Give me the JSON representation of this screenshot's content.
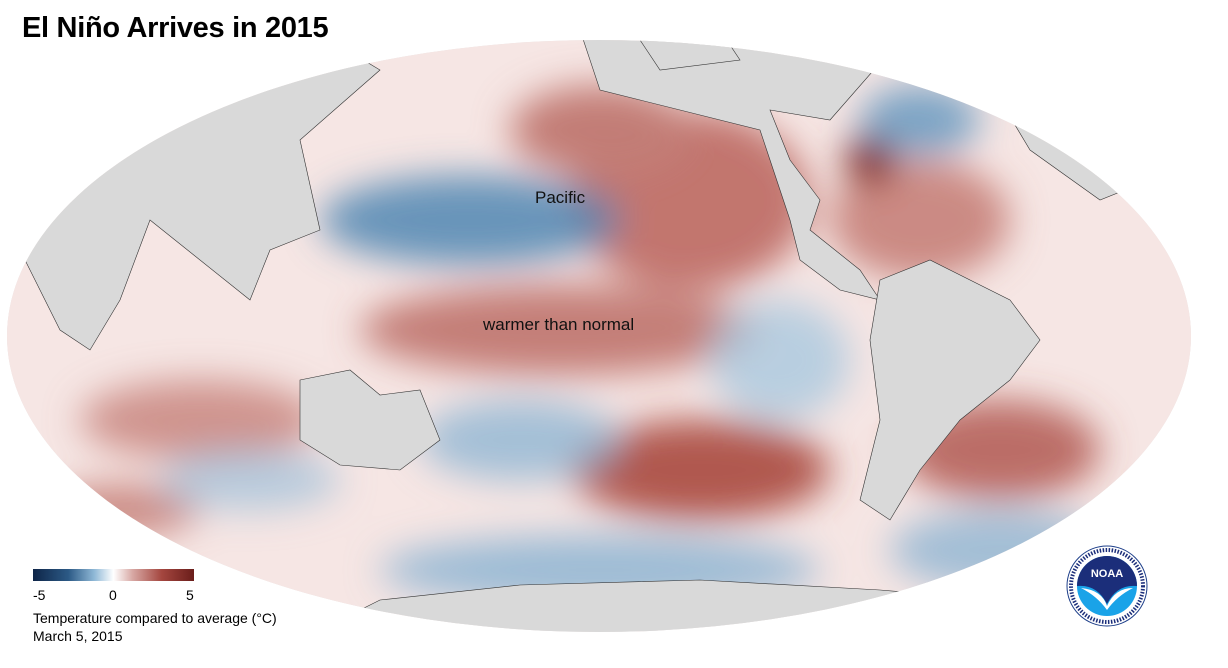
{
  "title": "El Niño Arrives in 2015",
  "annotations": {
    "pacific": "Pacific",
    "warm": "warmer than normal"
  },
  "legend": {
    "min_label": "-5",
    "mid_label": "0",
    "max_label": "5",
    "caption": "Temperature compared to average (°C)",
    "date": "March 5, 2015",
    "colors": {
      "cold": "#0e2548",
      "neutral": "#ffffff",
      "warm": "#6a1d1a"
    }
  },
  "logo": {
    "name": "NOAA",
    "ring_text": "NATIONAL OCEANIC AND ATMOSPHERIC ADMINISTRATION · U.S. DEPARTMENT OF COMMERCE"
  },
  "colors": {
    "land": "#d9d9d9",
    "background": "#e3e3e3"
  }
}
